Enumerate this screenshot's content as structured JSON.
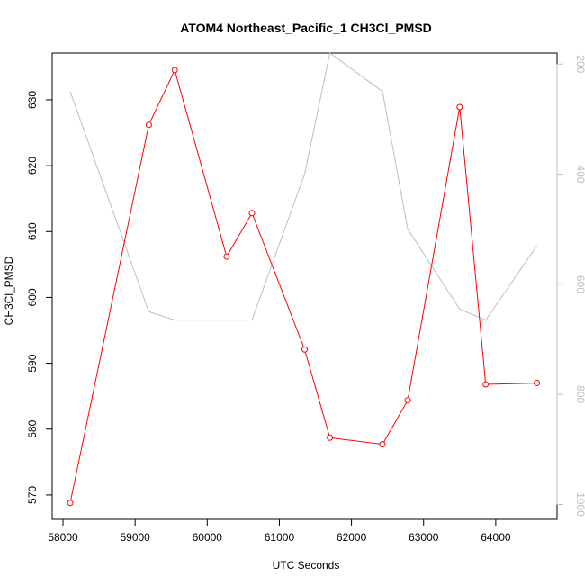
{
  "chart_data": {
    "type": "line",
    "title": "ATOM4 Northeast_Pacific_1 CH3Cl_PMSD",
    "xlabel": "UTC Seconds",
    "ylabel": "CH3Cl_PMSD",
    "xlim": [
      57850,
      64850
    ],
    "ylim": [
      566.3,
      637.1
    ],
    "y2lim": [
      1027,
      180
    ],
    "x_ticks": [
      58000,
      59000,
      60000,
      61000,
      62000,
      63000,
      64000
    ],
    "y_ticks": [
      570,
      580,
      590,
      600,
      610,
      620,
      630
    ],
    "y2_ticks": [
      200,
      400,
      600,
      800,
      1000
    ],
    "grid": false,
    "series": [
      {
        "color": "#ff0000",
        "markers": true,
        "axis": "left",
        "points": [
          {
            "x": 58100,
            "y": 568.8
          },
          {
            "x": 59190,
            "y": 626.2
          },
          {
            "x": 59550,
            "y": 634.5
          },
          {
            "x": 60270,
            "y": 606.2
          },
          {
            "x": 60620,
            "y": 612.8
          },
          {
            "x": 61350,
            "y": 592.1
          },
          {
            "x": 61700,
            "y": 578.7
          },
          {
            "x": 62430,
            "y": 577.7
          },
          {
            "x": 62780,
            "y": 584.4
          },
          {
            "x": 63500,
            "y": 628.9
          },
          {
            "x": 63860,
            "y": 586.8
          },
          {
            "x": 64570,
            "y": 587.0
          }
        ]
      },
      {
        "color": "#bebebe",
        "markers": false,
        "axis": "right",
        "points": [
          {
            "x": 58100,
            "y": 250
          },
          {
            "x": 59190,
            "y": 650
          },
          {
            "x": 59550,
            "y": 665
          },
          {
            "x": 60270,
            "y": 665
          },
          {
            "x": 60620,
            "y": 665
          },
          {
            "x": 61350,
            "y": 400
          },
          {
            "x": 61700,
            "y": 180
          },
          {
            "x": 62430,
            "y": 250
          },
          {
            "x": 62780,
            "y": 500
          },
          {
            "x": 63500,
            "y": 645
          },
          {
            "x": 63860,
            "y": 665
          },
          {
            "x": 64570,
            "y": 530
          }
        ]
      }
    ]
  }
}
